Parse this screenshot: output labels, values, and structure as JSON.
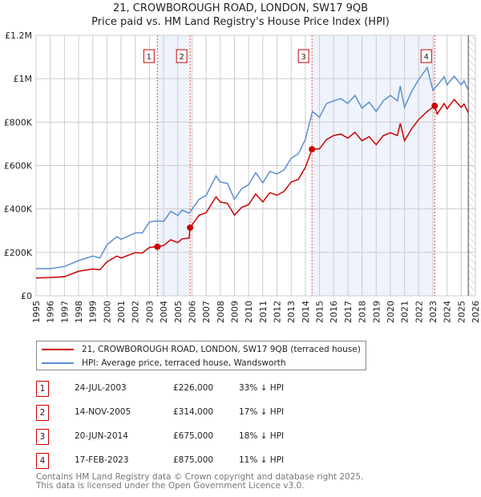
{
  "title": "21, CROWBOROUGH ROAD, LONDON, SW17 9QB",
  "subtitle": "Price paid vs. HM Land Registry's House Price Index (HPI)",
  "colors": {
    "property": "#cc0000",
    "hpi": "#5b8fd0",
    "shade": "#eef3fc",
    "grid": "#cccccc"
  },
  "chart_data": {
    "type": "line",
    "xlim": [
      1995,
      2026
    ],
    "ylim": [
      0,
      1200000
    ],
    "yticks": [
      {
        "v": 0,
        "label": "£0"
      },
      {
        "v": 200000,
        "label": "£200K"
      },
      {
        "v": 400000,
        "label": "£400K"
      },
      {
        "v": 600000,
        "label": "£600K"
      },
      {
        "v": 800000,
        "label": "£800K"
      },
      {
        "v": 1000000,
        "label": "£1M"
      },
      {
        "v": 1200000,
        "label": "£1.2M"
      }
    ],
    "xticks": [
      "1995",
      "1996",
      "1997",
      "1998",
      "1999",
      "2000",
      "2001",
      "2002",
      "2003",
      "2004",
      "2005",
      "2006",
      "2007",
      "2008",
      "2009",
      "2010",
      "2011",
      "2012",
      "2013",
      "2014",
      "2015",
      "2016",
      "2017",
      "2018",
      "2019",
      "2020",
      "2021",
      "2022",
      "2023",
      "2024",
      "2025",
      "2026"
    ],
    "forecast_from": 2025.5,
    "series": [
      {
        "name": "21, CROWBOROUGH ROAD, LONDON, SW17 9QB (terraced house)",
        "key": "property",
        "points": [
          [
            1995,
            82000
          ],
          [
            1996,
            84000
          ],
          [
            1997,
            88000
          ],
          [
            1998,
            113000
          ],
          [
            1999,
            123000
          ],
          [
            1999.5,
            120000
          ],
          [
            2000,
            156000
          ],
          [
            2000.7,
            183000
          ],
          [
            2001,
            174000
          ],
          [
            2002,
            199000
          ],
          [
            2002.5,
            197000
          ],
          [
            2003,
            223000
          ],
          [
            2003.56,
            226000
          ],
          [
            2004,
            232000
          ],
          [
            2004.5,
            258000
          ],
          [
            2005,
            245000
          ],
          [
            2005.3,
            262000
          ],
          [
            2005.8,
            266000
          ],
          [
            2005.87,
            314000
          ],
          [
            2006.5,
            371000
          ],
          [
            2007,
            383000
          ],
          [
            2007.7,
            456000
          ],
          [
            2008,
            432000
          ],
          [
            2008.5,
            426000
          ],
          [
            2009,
            371000
          ],
          [
            2009.5,
            407000
          ],
          [
            2010,
            420000
          ],
          [
            2010.5,
            469000
          ],
          [
            2011,
            432000
          ],
          [
            2011.5,
            475000
          ],
          [
            2012,
            463000
          ],
          [
            2012.5,
            481000
          ],
          [
            2013,
            524000
          ],
          [
            2013.5,
            536000
          ],
          [
            2014,
            591000
          ],
          [
            2014.47,
            675000
          ],
          [
            2015,
            677000
          ],
          [
            2015.5,
            720000
          ],
          [
            2016,
            738000
          ],
          [
            2016.5,
            745000
          ],
          [
            2017,
            726000
          ],
          [
            2017.5,
            753000
          ],
          [
            2018,
            714000
          ],
          [
            2018.5,
            733000
          ],
          [
            2019,
            696000
          ],
          [
            2019.5,
            738000
          ],
          [
            2020,
            751000
          ],
          [
            2020.5,
            738000
          ],
          [
            2020.7,
            794000
          ],
          [
            2021,
            714000
          ],
          [
            2021.5,
            769000
          ],
          [
            2022,
            812000
          ],
          [
            2022.6,
            849000
          ],
          [
            2023.13,
            875000
          ],
          [
            2023.3,
            837000
          ],
          [
            2023.8,
            886000
          ],
          [
            2024,
            861000
          ],
          [
            2024.5,
            904000
          ],
          [
            2025,
            868000
          ],
          [
            2025.2,
            883000
          ],
          [
            2025.5,
            843000
          ]
        ]
      },
      {
        "name": "HPI: Average price, terraced house, Wandsworth",
        "key": "hpi",
        "points": [
          [
            1995,
            125000
          ],
          [
            1996,
            125000
          ],
          [
            1997,
            135000
          ],
          [
            1998,
            162000
          ],
          [
            1999,
            183000
          ],
          [
            1999.5,
            174000
          ],
          [
            2000,
            235000
          ],
          [
            2000.7,
            272000
          ],
          [
            2001,
            260000
          ],
          [
            2002,
            290000
          ],
          [
            2002.5,
            290000
          ],
          [
            2003,
            340000
          ],
          [
            2003.5,
            345000
          ],
          [
            2004,
            343000
          ],
          [
            2004.5,
            389000
          ],
          [
            2005,
            370000
          ],
          [
            2005.3,
            395000
          ],
          [
            2005.8,
            380000
          ],
          [
            2006.5,
            444000
          ],
          [
            2007,
            462000
          ],
          [
            2007.7,
            552000
          ],
          [
            2008,
            524000
          ],
          [
            2008.5,
            518000
          ],
          [
            2009,
            444000
          ],
          [
            2009.5,
            493000
          ],
          [
            2010,
            512000
          ],
          [
            2010.5,
            567000
          ],
          [
            2011,
            520000
          ],
          [
            2011.5,
            573000
          ],
          [
            2012,
            561000
          ],
          [
            2012.5,
            580000
          ],
          [
            2013,
            634000
          ],
          [
            2013.5,
            653000
          ],
          [
            2014,
            720000
          ],
          [
            2014.5,
            849000
          ],
          [
            2015,
            822000
          ],
          [
            2015.5,
            886000
          ],
          [
            2016,
            898000
          ],
          [
            2016.5,
            908000
          ],
          [
            2017,
            886000
          ],
          [
            2017.5,
            923000
          ],
          [
            2018,
            864000
          ],
          [
            2018.5,
            892000
          ],
          [
            2019,
            849000
          ],
          [
            2019.5,
            898000
          ],
          [
            2020,
            923000
          ],
          [
            2020.5,
            898000
          ],
          [
            2020.7,
            966000
          ],
          [
            2021,
            868000
          ],
          [
            2021.5,
            941000
          ],
          [
            2022,
            996000
          ],
          [
            2022.6,
            1051000
          ],
          [
            2023,
            947000
          ],
          [
            2023.5,
            984000
          ],
          [
            2023.8,
            1009000
          ],
          [
            2024,
            972000
          ],
          [
            2024.5,
            1011000
          ],
          [
            2025,
            972000
          ],
          [
            2025.2,
            990000
          ],
          [
            2025.5,
            947000
          ]
        ]
      }
    ],
    "sales": [
      {
        "n": "1",
        "x": 2003.56,
        "y": 226000
      },
      {
        "n": "2",
        "x": 2005.87,
        "y": 314000
      },
      {
        "n": "3",
        "x": 2014.47,
        "y": 675000
      },
      {
        "n": "4",
        "x": 2023.13,
        "y": 875000
      }
    ],
    "shaded_ranges": [
      [
        2003.56,
        2005.87
      ],
      [
        2014.47,
        2023.13
      ]
    ]
  },
  "legend": {
    "property": "21, CROWBOROUGH ROAD, LONDON, SW17 9QB (terraced house)",
    "hpi": "HPI: Average price, terraced house, Wandsworth"
  },
  "table": [
    {
      "n": "1",
      "date": "24-JUL-2003",
      "price": "£226,000",
      "diff": "33% ↓ HPI"
    },
    {
      "n": "2",
      "date": "14-NOV-2005",
      "price": "£314,000",
      "diff": "17% ↓ HPI"
    },
    {
      "n": "3",
      "date": "20-JUN-2014",
      "price": "£675,000",
      "diff": "18% ↓ HPI"
    },
    {
      "n": "4",
      "date": "17-FEB-2023",
      "price": "£875,000",
      "diff": "11% ↓ HPI"
    }
  ],
  "footer": [
    "Contains HM Land Registry data © Crown copyright and database right 2025.",
    "This data is licensed under the Open Government Licence v3.0."
  ]
}
